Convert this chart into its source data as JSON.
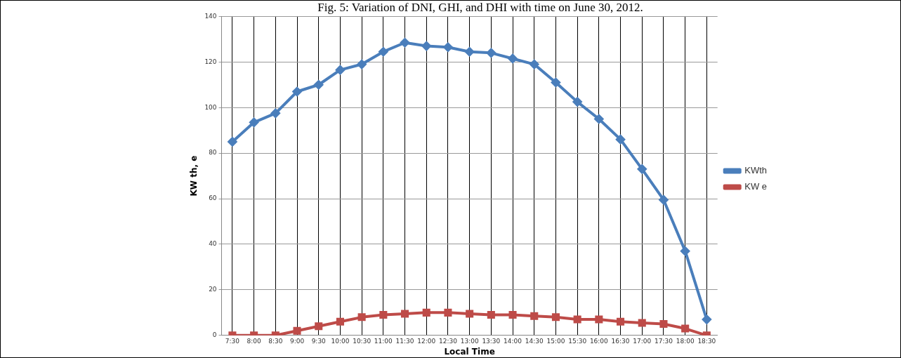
{
  "chart_data": {
    "type": "line",
    "title": "Fig. 5: Variation of DNI, GHI, and DHI with time on June 30, 2012.",
    "xlabel": "Local Time",
    "ylabel": "KW th, e",
    "categories": [
      "7:30",
      "8:00",
      "8:30",
      "9:00",
      "9:30",
      "10:00",
      "10:30",
      "11:00",
      "11:30",
      "12:00",
      "12:30",
      "13:00",
      "13:30",
      "14:00",
      "14:30",
      "15:00",
      "15:30",
      "16:00",
      "16:30",
      "17:00",
      "17:30",
      "18:00",
      "18:30"
    ],
    "series": [
      {
        "name": "KWth",
        "color": "#4a7ebb",
        "marker": "diamond",
        "values": [
          85,
          93.5,
          97.5,
          107,
          110,
          116.5,
          119,
          124.5,
          128.5,
          127,
          126.5,
          124.5,
          124,
          121.5,
          119,
          111,
          102.5,
          95,
          86,
          73,
          59.5,
          37,
          7
        ]
      },
      {
        "name": "KW e",
        "color": "#be4b48",
        "marker": "square",
        "values": [
          0,
          0,
          0,
          2,
          4,
          6,
          8,
          9,
          9.5,
          10,
          10,
          9.5,
          9,
          9,
          8.5,
          8,
          7,
          7,
          6,
          5.5,
          5,
          3,
          0
        ]
      }
    ],
    "ylim": [
      0,
      140
    ],
    "yticks": [
      0,
      20,
      40,
      60,
      80,
      100,
      120,
      140
    ],
    "grid": true,
    "legend": "right"
  }
}
